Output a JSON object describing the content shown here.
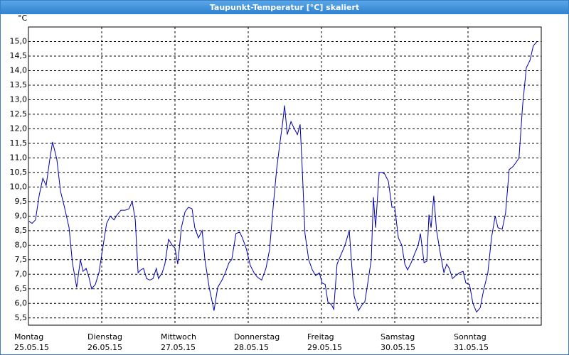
{
  "chart_data": {
    "type": "line",
    "title": "Taupunkt-Temperatur [°C] skaliert",
    "y_unit": "°C",
    "color": "#0000b4",
    "grid": true,
    "xlim": [
      0,
      168
    ],
    "xticks": [
      {
        "value": 0,
        "label": "Montag",
        "sublabel": "25.05.15"
      },
      {
        "value": 24,
        "label": "Dienstag",
        "sublabel": "26.05.15"
      },
      {
        "value": 48,
        "label": "Mittwoch",
        "sublabel": "27.05.15"
      },
      {
        "value": 72,
        "label": "Donnerstag",
        "sublabel": "28.05.15"
      },
      {
        "value": 96,
        "label": "Freitag",
        "sublabel": "29.05.15"
      },
      {
        "value": 120,
        "label": "Samstag",
        "sublabel": "30.05.15"
      },
      {
        "value": 144,
        "label": "Sonntag",
        "sublabel": "31.05.15"
      }
    ],
    "ylim": [
      5.25,
      15.5
    ],
    "yticks": [
      {
        "value": 5.5,
        "label": "5,5"
      },
      {
        "value": 6,
        "label": "6,0"
      },
      {
        "value": 6.5,
        "label": "6,5"
      },
      {
        "value": 7,
        "label": "7,0"
      },
      {
        "value": 7.5,
        "label": "7,5"
      },
      {
        "value": 8,
        "label": "8,0"
      },
      {
        "value": 8.5,
        "label": "8,5"
      },
      {
        "value": 9,
        "label": "9,0"
      },
      {
        "value": 9.5,
        "label": "9,5"
      },
      {
        "value": 10,
        "label": "10,0"
      },
      {
        "value": 10.5,
        "label": "10,5"
      },
      {
        "value": 11,
        "label": "11,0"
      },
      {
        "value": 11.5,
        "label": "11,5"
      },
      {
        "value": 12,
        "label": "12,0"
      },
      {
        "value": 12.5,
        "label": "12,5"
      },
      {
        "value": 13,
        "label": "13,0"
      },
      {
        "value": 13.5,
        "label": "13,5"
      },
      {
        "value": 14,
        "label": "14,0"
      },
      {
        "value": 14.5,
        "label": "14,5"
      },
      {
        "value": 15,
        "label": "15,0"
      }
    ],
    "x": [
      0.2,
      1.2,
      2.3,
      3.5,
      4.7,
      5.8,
      7.0,
      7.9,
      9.3,
      10.5,
      11.7,
      13.3,
      14.4,
      15.8,
      17.0,
      17.9,
      18.9,
      19.8,
      20.7,
      21.9,
      23.1,
      24.5,
      25.6,
      26.8,
      28.0,
      29.1,
      30.3,
      31.7,
      32.9,
      34.0,
      35.0,
      35.9,
      36.8,
      37.7,
      38.7,
      39.8,
      40.8,
      41.9,
      42.6,
      43.8,
      44.7,
      45.9,
      47.1,
      48.0,
      48.9,
      50.1,
      51.3,
      52.4,
      53.6,
      54.5,
      55.7,
      56.9,
      57.8,
      59.2,
      60.8,
      62.0,
      63.4,
      64.5,
      65.7,
      66.6,
      68.0,
      69.2,
      70.1,
      71.3,
      72.7,
      73.9,
      75.0,
      76.4,
      77.8,
      79.0,
      80.2,
      81.3,
      82.3,
      83.2,
      83.9,
      84.8,
      86.0,
      86.9,
      88.1,
      89.0,
      89.7,
      90.6,
      91.8,
      93.0,
      94.1,
      95.3,
      96.2,
      97.2,
      98.1,
      99.3,
      100.0,
      101.1,
      102.5,
      103.7,
      105.1,
      105.8,
      106.7,
      108.1,
      109.3,
      110.2,
      111.1,
      112.3,
      113.0,
      113.7,
      114.9,
      115.8,
      116.7,
      117.9,
      119.1,
      120.0,
      121.2,
      122.3,
      123.3,
      124.2,
      125.4,
      126.5,
      127.7,
      128.4,
      129.6,
      130.5,
      131.2,
      131.9,
      132.8,
      133.7,
      134.9,
      136.1,
      137.0,
      137.9,
      138.9,
      140.0,
      141.2,
      142.4,
      143.3,
      144.5,
      145.6,
      146.8,
      148.0,
      149.1,
      150.5,
      151.7,
      152.9,
      153.8,
      155.2,
      156.3,
      157.5,
      158.7,
      159.8,
      160.7,
      161.9,
      163.1,
      164.3,
      165.4,
      166.6
    ],
    "values": [
      8.82,
      8.75,
      8.87,
      9.7,
      10.3,
      10.05,
      10.95,
      11.55,
      10.95,
      9.85,
      9.35,
      8.6,
      7.4,
      6.55,
      7.5,
      7.1,
      7.2,
      6.9,
      6.5,
      6.65,
      7.05,
      8.0,
      8.75,
      9.0,
      8.87,
      9.05,
      9.2,
      9.2,
      9.25,
      9.5,
      8.87,
      7.05,
      7.15,
      7.2,
      6.85,
      6.8,
      6.85,
      7.2,
      6.85,
      7.05,
      7.35,
      8.2,
      8.0,
      7.9,
      7.35,
      8.6,
      9.15,
      9.3,
      9.25,
      8.6,
      8.25,
      8.5,
      7.5,
      6.55,
      5.75,
      6.55,
      6.8,
      7.05,
      7.4,
      7.5,
      8.4,
      8.45,
      8.25,
      7.9,
      7.3,
      7.05,
      6.9,
      6.8,
      7.2,
      7.85,
      9.35,
      10.6,
      11.45,
      12.15,
      12.8,
      11.8,
      12.25,
      12.05,
      11.8,
      12.15,
      10.6,
      8.4,
      7.5,
      7.15,
      6.95,
      7.05,
      6.7,
      6.65,
      6.05,
      5.95,
      5.8,
      7.35,
      7.7,
      8.0,
      8.5,
      7.45,
      6.25,
      5.75,
      5.95,
      6.05,
      6.65,
      7.5,
      9.65,
      8.6,
      10.5,
      10.5,
      10.45,
      10.2,
      9.3,
      9.3,
      8.25,
      8.0,
      7.35,
      7.15,
      7.4,
      7.7,
      8.0,
      8.4,
      7.4,
      7.45,
      9.05,
      8.6,
      9.7,
      8.5,
      7.75,
      7.05,
      7.35,
      7.2,
      6.85,
      6.95,
      7.05,
      7.1,
      6.7,
      6.65,
      6.0,
      5.7,
      5.85,
      6.45,
      7.05,
      8.25,
      9.0,
      8.6,
      8.55,
      9.1,
      10.6,
      10.7,
      10.85,
      11.0,
      12.8,
      14.1,
      14.35,
      14.85,
      15.0
    ]
  }
}
